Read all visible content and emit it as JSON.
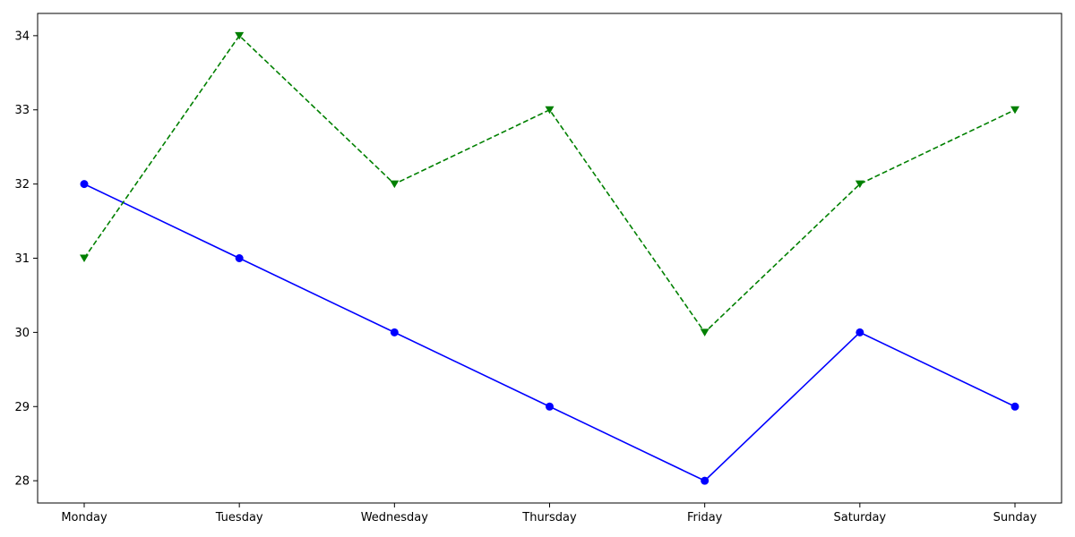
{
  "chart_data": {
    "type": "line",
    "title": "",
    "xlabel": "",
    "ylabel": "",
    "categories": [
      "Monday",
      "Tuesday",
      "Wednesday",
      "Thursday",
      "Friday",
      "Saturday",
      "Sunday"
    ],
    "ylim": [
      27.7,
      34.3
    ],
    "yticks": [
      28,
      29,
      30,
      31,
      32,
      33,
      34
    ],
    "grid": false,
    "legend": "none",
    "series": [
      {
        "values": [
          32,
          31,
          30,
          29,
          28,
          30,
          29
        ],
        "color": "#0000ff",
        "line_style": "solid",
        "marker": "circle"
      },
      {
        "values": [
          31,
          34,
          32,
          33,
          30,
          32,
          33
        ],
        "color": "#008000",
        "line_style": "dashed",
        "marker": "triangle-down"
      }
    ]
  }
}
